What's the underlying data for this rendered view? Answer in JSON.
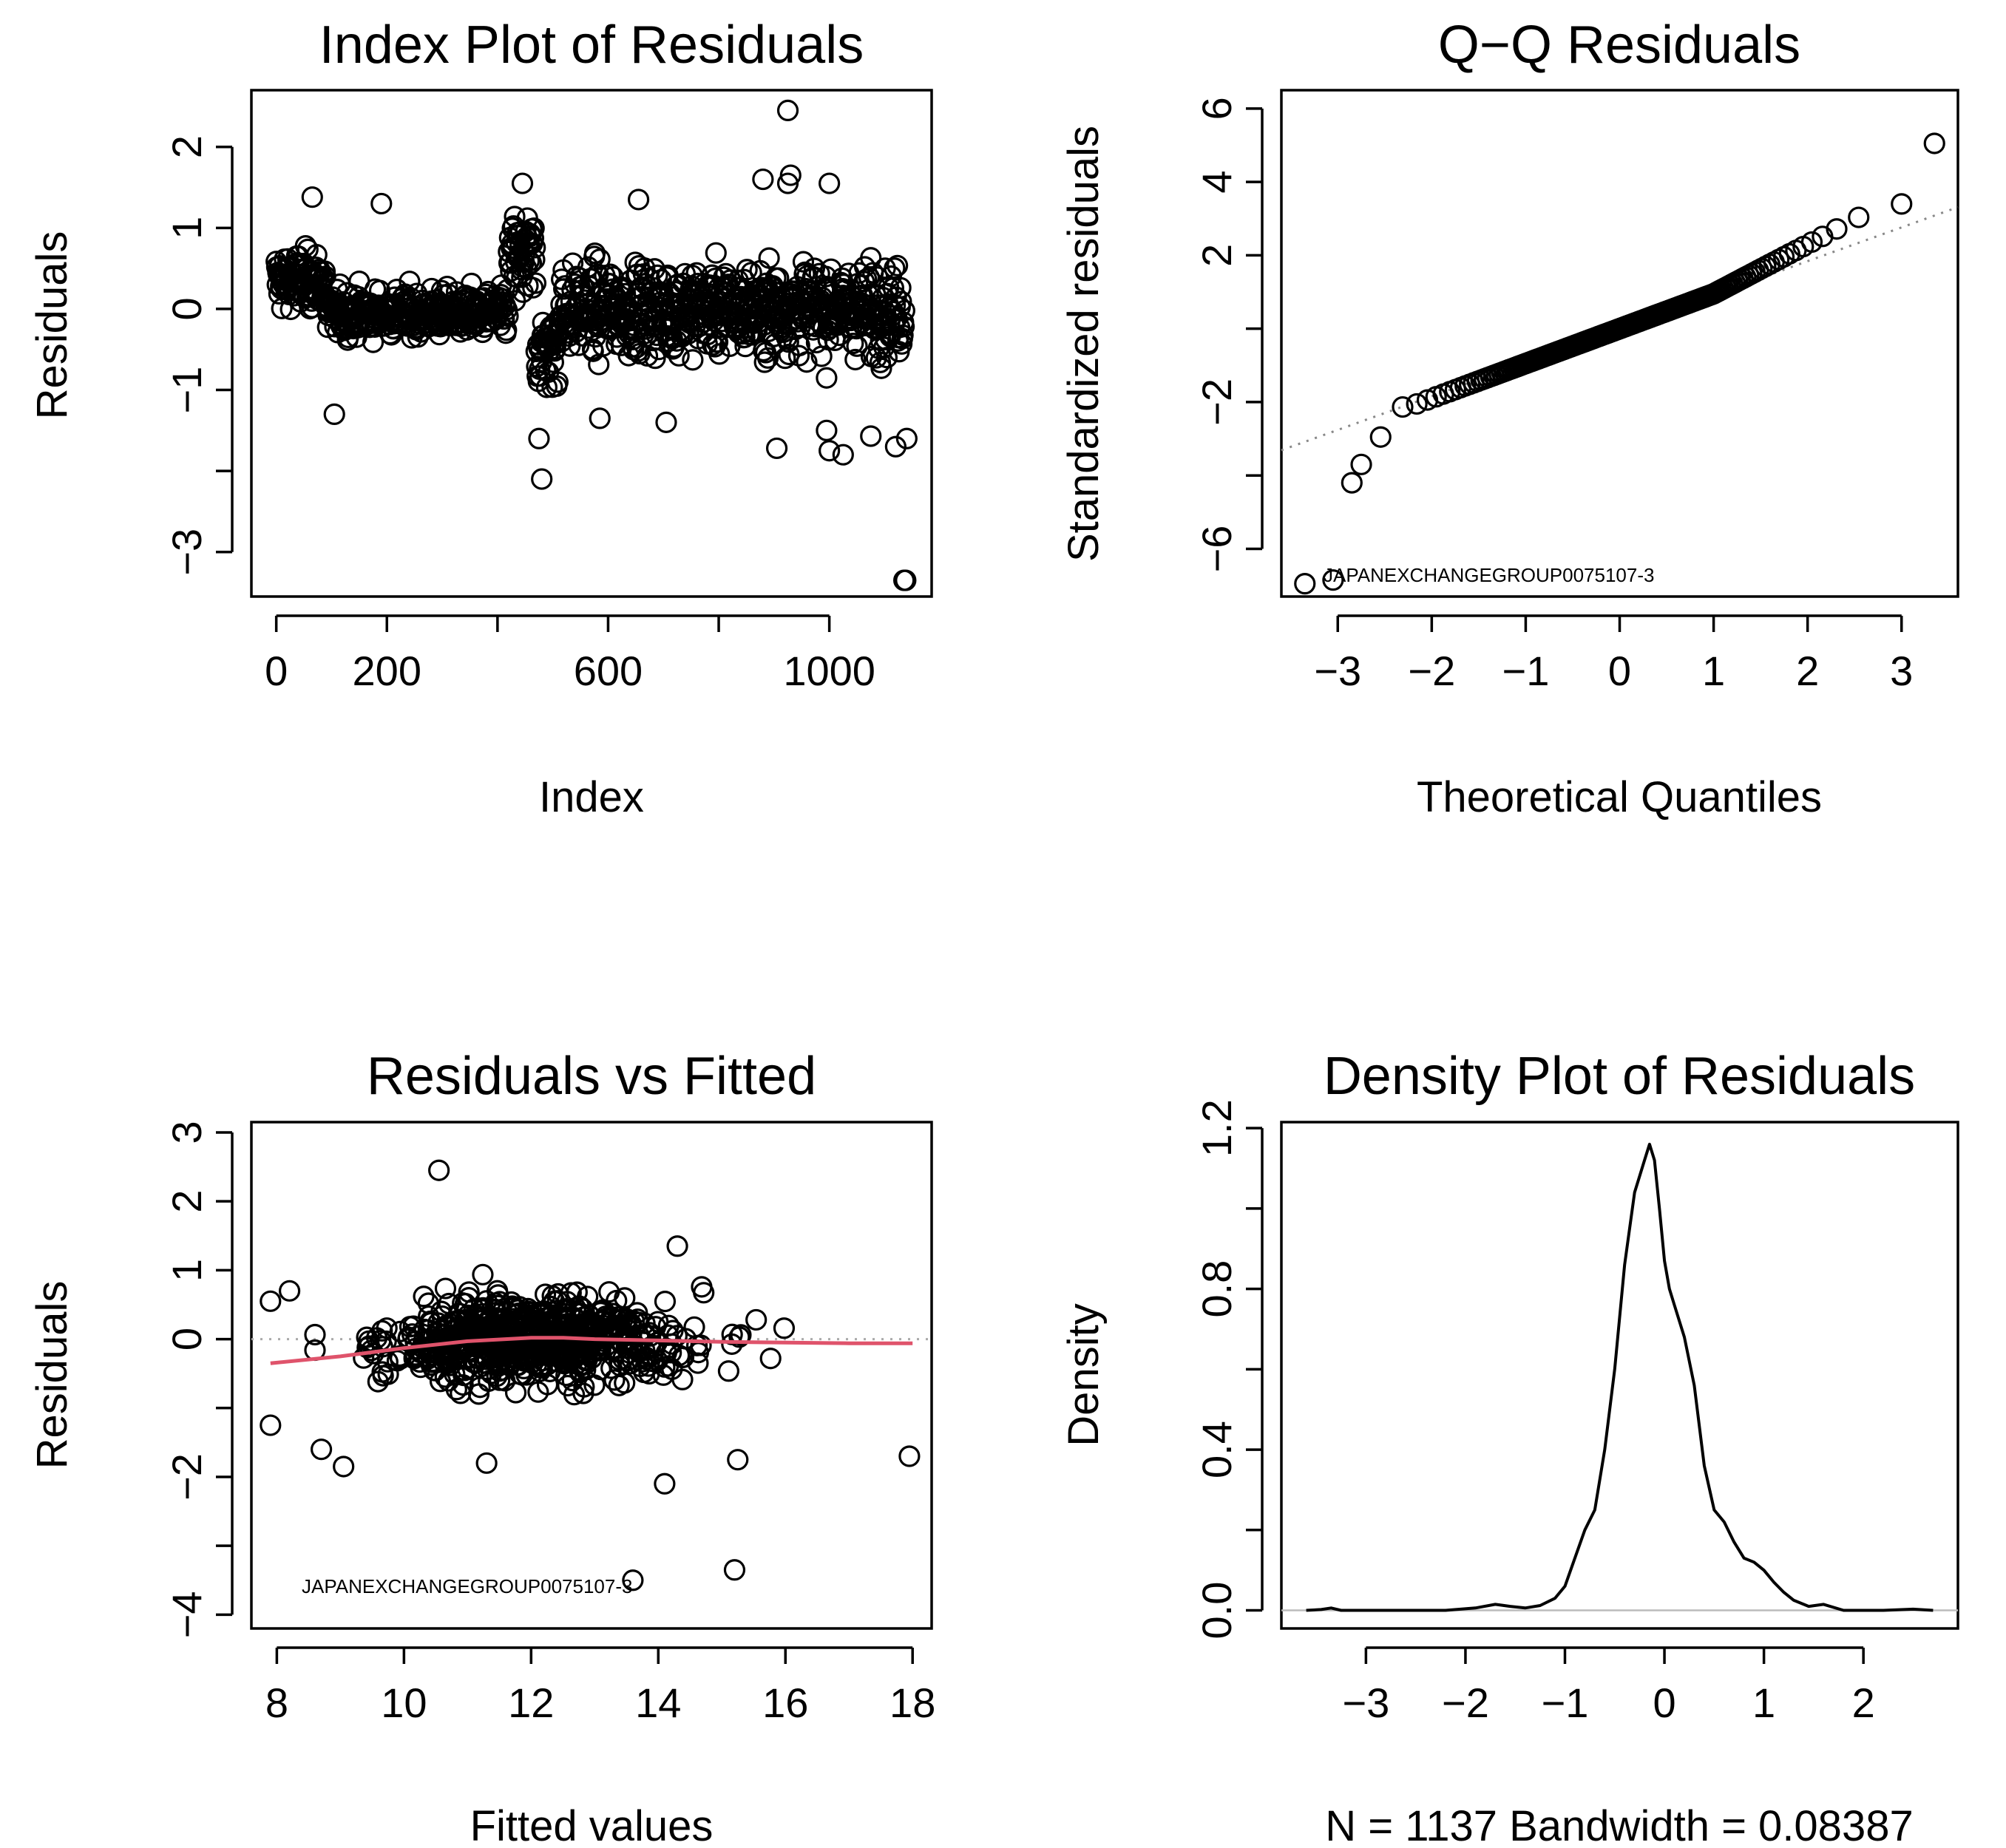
{
  "chart_data": [
    {
      "type": "scatter",
      "title": "Index Plot of Residuals",
      "xlabel": "Index",
      "ylabel": "Residuals",
      "xlim": [
        -45,
        1185
      ],
      "ylim": [
        -3.55,
        2.7
      ],
      "xticks": [
        0,
        200,
        400,
        600,
        800,
        1000
      ],
      "xtick_labels": [
        "0",
        "200",
        "",
        "600",
        "",
        "1000"
      ],
      "yticks": [
        -3,
        -2,
        -1,
        0,
        1,
        2
      ],
      "ytick_labels": [
        "−3",
        "",
        "−1",
        "0",
        "1",
        "2"
      ],
      "n_points": 1137,
      "outliers": [
        {
          "x": 925,
          "y": 2.45
        },
        {
          "x": 930,
          "y": 1.65
        },
        {
          "x": 925,
          "y": 1.55
        },
        {
          "x": 445,
          "y": 1.55
        },
        {
          "x": 1000,
          "y": 1.55
        },
        {
          "x": 880,
          "y": 1.6
        },
        {
          "x": 65,
          "y": 1.38
        },
        {
          "x": 190,
          "y": 1.3
        },
        {
          "x": 655,
          "y": 1.35
        },
        {
          "x": 480,
          "y": -2.1
        },
        {
          "x": 475,
          "y": -1.6
        },
        {
          "x": 105,
          "y": -1.3
        },
        {
          "x": 585,
          "y": -1.35
        },
        {
          "x": 705,
          "y": -1.4
        },
        {
          "x": 905,
          "y": -1.72
        },
        {
          "x": 995,
          "y": -1.5
        },
        {
          "x": 1000,
          "y": -1.75
        },
        {
          "x": 1025,
          "y": -1.8
        },
        {
          "x": 1075,
          "y": -1.57
        },
        {
          "x": 1120,
          "y": -1.7
        },
        {
          "x": 1140,
          "y": -1.6
        },
        {
          "x": 1135,
          "y": -3.35
        },
        {
          "x": 1138,
          "y": -3.35
        }
      ]
    },
    {
      "type": "scatter",
      "title": "Q−Q Residuals",
      "xlabel": "Theoretical Quantiles",
      "ylabel": "Standardized residuals",
      "xlim": [
        -3.6,
        3.6
      ],
      "ylim": [
        -7.3,
        6.5
      ],
      "xticks": [
        -3,
        -2,
        -1,
        0,
        1,
        2,
        3
      ],
      "xtick_labels": [
        "−3",
        "−2",
        "−1",
        "0",
        "1",
        "2",
        "3"
      ],
      "yticks": [
        -6,
        -4,
        -2,
        0,
        2,
        4,
        6
      ],
      "ytick_labels": [
        "−6",
        "",
        "−2",
        "",
        "2",
        "4",
        "6"
      ],
      "reference_line": {
        "slope": 0.92,
        "intercept": 0.0,
        "style": "dotted"
      },
      "extremes": [
        {
          "x": -3.35,
          "y": -6.95
        },
        {
          "x": -3.05,
          "y": -6.85
        },
        {
          "x": -2.85,
          "y": -4.2
        },
        {
          "x": -2.75,
          "y": -3.7
        },
        {
          "x": 3.0,
          "y": 3.4
        },
        {
          "x": 3.35,
          "y": 5.05
        }
      ],
      "annotation": "JAPANEXCHANGEGROUP0075107-3"
    },
    {
      "type": "scatter",
      "title": "Residuals vs Fitted",
      "xlabel": "Fitted values",
      "ylabel": "Residuals",
      "xlim": [
        7.6,
        18.3
      ],
      "ylim": [
        -4.2,
        3.15
      ],
      "xticks": [
        8,
        10,
        12,
        14,
        16,
        18
      ],
      "xtick_labels": [
        "8",
        "10",
        "12",
        "14",
        "16",
        "18"
      ],
      "yticks": [
        -4,
        -3,
        -2,
        -1,
        0,
        1,
        2,
        3
      ],
      "ytick_labels": [
        "−4",
        "",
        "−2",
        "",
        "0",
        "1",
        "2",
        "3"
      ],
      "smooth_line": {
        "color": "#df536b",
        "x": [
          7.9,
          9,
          10,
          11,
          12,
          12.5,
          13,
          14,
          15,
          16,
          17,
          18
        ],
        "y": [
          -0.35,
          -0.25,
          -0.13,
          -0.03,
          0.02,
          0.02,
          0.0,
          -0.02,
          -0.04,
          -0.05,
          -0.06,
          -0.06
        ]
      },
      "annotation": "JAPANEXCHANGEGROUP0075107-3",
      "outliers": [
        {
          "x": 10.55,
          "y": 2.45
        },
        {
          "x": 13.6,
          "y": -3.5
        },
        {
          "x": 15.2,
          "y": -3.35
        },
        {
          "x": 14.1,
          "y": -2.1
        },
        {
          "x": 9.05,
          "y": -1.85
        },
        {
          "x": 11.3,
          "y": -1.8
        },
        {
          "x": 7.9,
          "y": -1.25
        },
        {
          "x": 8.7,
          "y": -1.6
        },
        {
          "x": 17.95,
          "y": -1.7
        },
        {
          "x": 15.25,
          "y": -1.75
        },
        {
          "x": 7.9,
          "y": 0.55
        },
        {
          "x": 8.2,
          "y": 0.7
        },
        {
          "x": 14.3,
          "y": 1.35
        }
      ]
    },
    {
      "type": "line",
      "title": "Density Plot of Residuals",
      "xlabel": "N = 1137   Bandwidth = 0.08387",
      "ylabel": "Density",
      "xlim": [
        -3.85,
        2.95
      ],
      "ylim": [
        -0.045,
        1.215
      ],
      "xticks": [
        -3,
        -2,
        -1,
        0,
        1,
        2
      ],
      "xtick_labels": [
        "−3",
        "−2",
        "−1",
        "0",
        "1",
        "2"
      ],
      "yticks": [
        0.0,
        0.2,
        0.4,
        0.6,
        0.8,
        1.0,
        1.2
      ],
      "ytick_labels": [
        "0.0",
        "",
        "0.4",
        "",
        "0.8",
        "",
        "1.2"
      ],
      "x": [
        -3.6,
        -3.45,
        -3.35,
        -3.25,
        -2.8,
        -2.2,
        -1.9,
        -1.7,
        -1.55,
        -1.4,
        -1.25,
        -1.1,
        -1.0,
        -0.9,
        -0.8,
        -0.7,
        -0.6,
        -0.5,
        -0.4,
        -0.3,
        -0.2,
        -0.15,
        -0.1,
        -0.05,
        0.0,
        0.05,
        0.1,
        0.2,
        0.3,
        0.4,
        0.5,
        0.6,
        0.7,
        0.8,
        0.9,
        1.0,
        1.1,
        1.2,
        1.3,
        1.45,
        1.6,
        1.8,
        2.2,
        2.5,
        2.7
      ],
      "y": [
        0.0,
        0.002,
        0.006,
        0.0,
        0.0,
        0.0,
        0.006,
        0.015,
        0.01,
        0.006,
        0.012,
        0.03,
        0.06,
        0.13,
        0.2,
        0.25,
        0.4,
        0.6,
        0.86,
        1.04,
        1.12,
        1.16,
        1.12,
        1.0,
        0.87,
        0.8,
        0.76,
        0.68,
        0.56,
        0.36,
        0.25,
        0.22,
        0.17,
        0.13,
        0.12,
        0.1,
        0.07,
        0.045,
        0.025,
        0.01,
        0.015,
        0.0,
        0.0,
        0.003,
        0.0
      ]
    }
  ]
}
